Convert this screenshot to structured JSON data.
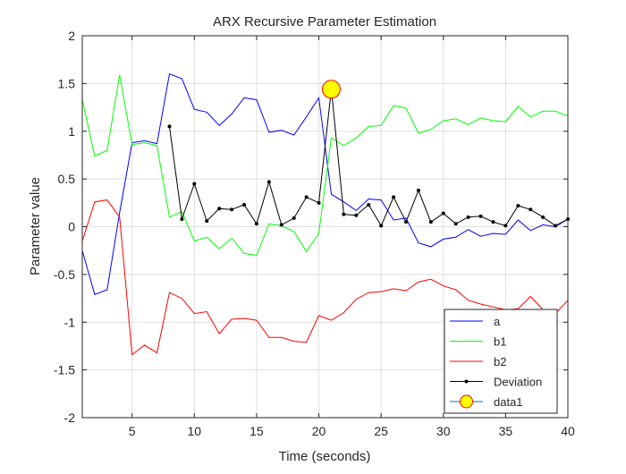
{
  "chart_data": {
    "type": "line",
    "title": "ARX Recursive Parameter Estimation",
    "xlabel": "Time (seconds)",
    "ylabel": "Parameter value",
    "xlim": [
      1,
      40
    ],
    "ylim": [
      -2,
      2
    ],
    "xticks": [
      5,
      10,
      15,
      20,
      25,
      30,
      35,
      40
    ],
    "yticks": [
      -2,
      -1.5,
      -1,
      -0.5,
      0,
      0.5,
      1,
      1.5,
      2
    ],
    "xtick_labels": [
      "5",
      "10",
      "15",
      "20",
      "25",
      "30",
      "35",
      "40"
    ],
    "ytick_labels": [
      "-2",
      "-1.5",
      "-1",
      "-0.5",
      "0",
      "0.5",
      "1",
      "1.5",
      "2"
    ],
    "grid": true,
    "legend_position": "bottom-right",
    "series": [
      {
        "name": "a",
        "color": "#0000ff",
        "marker": "none",
        "x": [
          1,
          2,
          3,
          4,
          5,
          6,
          7,
          8,
          9,
          10,
          11,
          12,
          13,
          14,
          15,
          16,
          17,
          18,
          19,
          20,
          21,
          22,
          23,
          24,
          25,
          26,
          27,
          28,
          29,
          30,
          31,
          32,
          33,
          34,
          35,
          36,
          37,
          38,
          39,
          40
        ],
        "y": [
          -0.25,
          -0.71,
          -0.66,
          0.15,
          0.88,
          0.9,
          0.87,
          1.6,
          1.55,
          1.23,
          1.2,
          1.06,
          1.18,
          1.35,
          1.33,
          0.99,
          1.01,
          0.96,
          1.15,
          1.35,
          0.34,
          0.26,
          0.17,
          0.29,
          0.28,
          0.07,
          0.09,
          -0.17,
          -0.21,
          -0.13,
          -0.11,
          -0.03,
          -0.1,
          -0.07,
          -0.08,
          0.07,
          -0.04,
          0.02,
          0.0,
          0.08
        ]
      },
      {
        "name": "b1",
        "color": "#00ff00",
        "marker": "none",
        "x": [
          1,
          2,
          3,
          4,
          5,
          6,
          7,
          8,
          9,
          10,
          11,
          12,
          13,
          14,
          15,
          16,
          17,
          18,
          19,
          20,
          21,
          22,
          23,
          24,
          25,
          26,
          27,
          28,
          29,
          30,
          31,
          32,
          33,
          34,
          35,
          36,
          37,
          38,
          39,
          40
        ],
        "y": [
          1.33,
          0.74,
          0.8,
          1.59,
          0.86,
          0.88,
          0.85,
          0.1,
          0.16,
          -0.15,
          -0.11,
          -0.23,
          -0.12,
          -0.28,
          -0.3,
          0.03,
          0.01,
          -0.05,
          -0.26,
          -0.07,
          0.93,
          0.85,
          0.93,
          1.05,
          1.06,
          1.27,
          1.24,
          0.98,
          1.02,
          1.11,
          1.13,
          1.07,
          1.14,
          1.11,
          1.1,
          1.26,
          1.15,
          1.21,
          1.21,
          1.16
        ]
      },
      {
        "name": "b2",
        "color": "#ff0000",
        "marker": "none",
        "x": [
          1,
          2,
          3,
          4,
          5,
          6,
          7,
          8,
          9,
          10,
          11,
          12,
          13,
          14,
          15,
          16,
          17,
          18,
          19,
          20,
          21,
          22,
          23,
          24,
          25,
          26,
          27,
          28,
          29,
          30,
          31,
          32,
          33,
          34,
          35,
          36,
          37,
          38,
          39,
          40
        ],
        "y": [
          -0.15,
          0.26,
          0.28,
          0.1,
          -1.34,
          -1.24,
          -1.32,
          -0.69,
          -0.75,
          -0.91,
          -0.89,
          -1.12,
          -0.97,
          -0.96,
          -0.98,
          -1.16,
          -1.16,
          -1.2,
          -1.21,
          -0.93,
          -0.98,
          -0.9,
          -0.76,
          -0.69,
          -0.68,
          -0.65,
          -0.67,
          -0.58,
          -0.55,
          -0.62,
          -0.66,
          -0.77,
          -0.81,
          -0.84,
          -0.87,
          -0.86,
          -0.73,
          -0.87,
          -0.91,
          -0.77
        ]
      },
      {
        "name": "Deviation",
        "color": "#000000",
        "marker": "dot",
        "x": [
          8,
          9,
          10,
          11,
          12,
          13,
          14,
          15,
          16,
          17,
          18,
          19,
          20,
          21,
          22,
          23,
          24,
          25,
          26,
          27,
          28,
          29,
          30,
          31,
          32,
          33,
          34,
          35,
          36,
          37,
          38,
          39,
          40
        ],
        "y": [
          1.05,
          0.08,
          0.45,
          0.06,
          0.19,
          0.18,
          0.23,
          0.03,
          0.47,
          0.02,
          0.09,
          0.31,
          0.25,
          1.44,
          0.13,
          0.12,
          0.23,
          0.01,
          0.31,
          0.05,
          0.38,
          0.05,
          0.14,
          0.03,
          0.1,
          0.11,
          0.05,
          0.01,
          0.22,
          0.18,
          0.1,
          0.01,
          0.08
        ]
      },
      {
        "name": "data1",
        "color": "#ffff00",
        "edge_color": "#ff0000",
        "marker": "circle",
        "x": [
          21
        ],
        "y": [
          1.44
        ]
      }
    ]
  }
}
